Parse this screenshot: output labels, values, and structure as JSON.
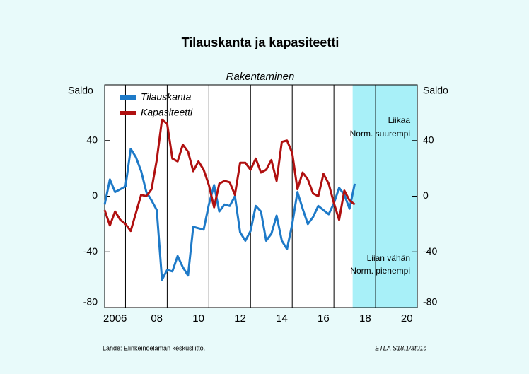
{
  "chart_data": {
    "type": "line",
    "title": "Tilauskanta ja kapasiteetti",
    "subtitle": "Rakentaminen",
    "y_label": "Saldo",
    "y2_label": "Saldo",
    "x": [
      2006,
      2006.25,
      2006.5,
      2006.75,
      2007,
      2007.25,
      2007.5,
      2007.75,
      2008,
      2008.25,
      2008.5,
      2008.75,
      2009,
      2009.25,
      2009.5,
      2009.75,
      2010,
      2010.25,
      2010.5,
      2010.75,
      2011,
      2011.25,
      2011.5,
      2011.75,
      2012,
      2012.25,
      2012.5,
      2012.75,
      2013,
      2013.25,
      2013.5,
      2013.75,
      2014,
      2014.25,
      2014.5,
      2014.75,
      2015,
      2015.25,
      2015.5,
      2015.75,
      2016,
      2016.25,
      2016.5,
      2016.75,
      2017,
      2017.25,
      2017.5,
      2017.75,
      2018
    ],
    "series": [
      {
        "name": "Tilauskanta",
        "color": "#1e7ac8",
        "values": [
          -6,
          12,
          3,
          5,
          7,
          34,
          28,
          18,
          3,
          -3,
          -10,
          -60,
          -53,
          -54,
          -43,
          -51,
          -57,
          -22,
          -23,
          -24,
          -6,
          8,
          -11,
          -6,
          -7,
          0,
          -26,
          -32,
          -25,
          -7,
          -11,
          -32,
          -27,
          -14,
          -32,
          -38,
          -20,
          3,
          -9,
          -20,
          -15,
          -7,
          -10,
          -13,
          -5,
          6,
          1,
          -9,
          9
        ]
      },
      {
        "name": "Kapasiteetti",
        "color": "#b01010",
        "values": [
          -10,
          -21,
          -11,
          -17,
          -20,
          -25,
          -12,
          1,
          0,
          5,
          26,
          55,
          52,
          27,
          25,
          37,
          32,
          18,
          25,
          19,
          8,
          -8,
          9,
          11,
          10,
          1,
          24,
          24,
          19,
          27,
          17,
          19,
          26,
          11,
          39,
          40,
          31,
          5,
          17,
          12,
          2,
          0,
          16,
          9,
          -5,
          -17,
          4,
          -3,
          -6
        ]
      }
    ],
    "xlim": [
      2006,
      2021
    ],
    "xticks": [
      {
        "value": 2006.5,
        "label": "2006"
      },
      {
        "value": 2008.5,
        "label": "08"
      },
      {
        "value": 2010.5,
        "label": "10"
      },
      {
        "value": 2012.5,
        "label": "12"
      },
      {
        "value": 2014.5,
        "label": "14"
      },
      {
        "value": 2016.5,
        "label": "16"
      },
      {
        "value": 2018.5,
        "label": "18"
      },
      {
        "value": 2020.5,
        "label": "20"
      }
    ],
    "xgrid": [
      2007,
      2009,
      2011,
      2013,
      2015,
      2017,
      2019
    ],
    "shaded_xlim": [
      2017.9,
      2021
    ],
    "ylim": [
      -80,
      80
    ],
    "yticks": [
      -80,
      -40,
      0,
      40
    ],
    "y2lim": [
      -80,
      80
    ],
    "y2ticks": [
      -80,
      -40,
      0,
      40
    ],
    "annotations": {
      "upper": [
        "Liikaa",
        "Norm. suurempi"
      ],
      "lower": [
        "Liian vähän",
        "Norm. pienempi"
      ]
    },
    "source": "Lähde:   Elinkeinoelämän keskusliitto.",
    "code": "ETLA S18.1/at01c"
  }
}
